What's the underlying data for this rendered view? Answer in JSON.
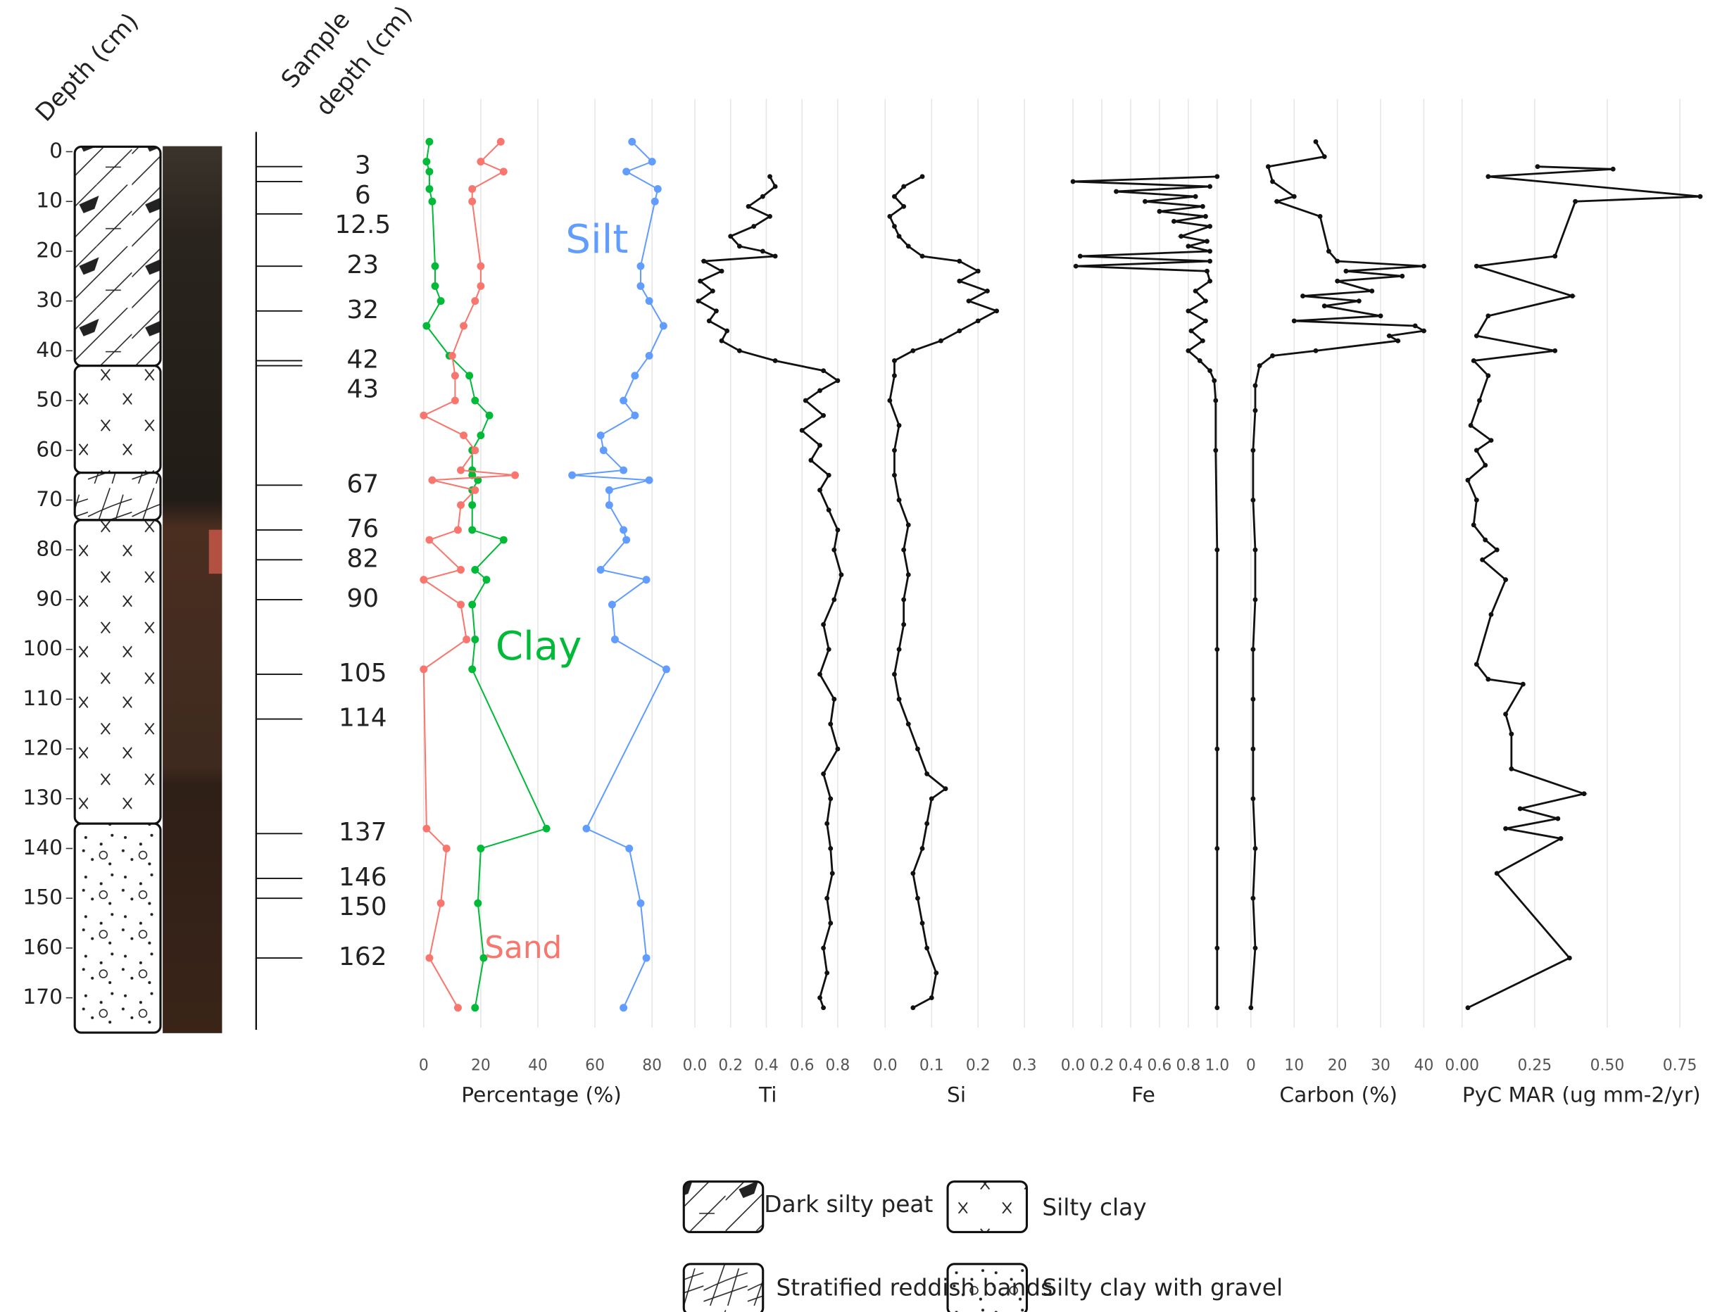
{
  "depth_axis": {
    "label": "Depth (cm)",
    "lim": [
      -10.6,
      176
    ],
    "ticks": [
      0,
      10,
      20,
      30,
      40,
      50,
      60,
      70,
      80,
      90,
      100,
      110,
      120,
      130,
      140,
      150,
      160,
      170
    ]
  },
  "sample_depth": {
    "label_lines": [
      "Sample",
      "depth (cm)"
    ],
    "depths": [
      3,
      6,
      12.5,
      23,
      32,
      42,
      43,
      67,
      76,
      82,
      90,
      105,
      114,
      137,
      146,
      150,
      162
    ]
  },
  "lithology": {
    "types": [
      {
        "label": "Dark silty peat"
      },
      {
        "label": "Silty clay"
      },
      {
        "label": "Stratified reddish bands"
      },
      {
        "label": "Silty clay with gravel"
      }
    ],
    "units": [
      {
        "top": -1,
        "bottom": 43,
        "type": 0
      },
      {
        "top": 43,
        "bottom": 64.5,
        "type": 1
      },
      {
        "top": 64.5,
        "bottom": 74,
        "type": 2
      },
      {
        "top": 74,
        "bottom": 135,
        "type": 1
      },
      {
        "top": 135,
        "bottom": 177,
        "type": 3
      }
    ]
  },
  "chart_data": [
    {
      "type": "line",
      "xlabel": "Percentage (%)",
      "xlim": [
        -4,
        86.5
      ],
      "xticks": [
        0,
        20,
        40,
        60,
        80
      ],
      "depth": [
        -2,
        2,
        4,
        7.5,
        10,
        23,
        27,
        30,
        35,
        41,
        45,
        50,
        53,
        57,
        60,
        64,
        65,
        66,
        68,
        71,
        76,
        78,
        84,
        86,
        91,
        98,
        104,
        136,
        140,
        151,
        162,
        172
      ],
      "series": [
        {
          "name": "Silt",
          "color": "#619cff",
          "values": [
            73,
            80,
            71,
            82,
            81,
            76,
            76,
            79,
            84,
            79,
            74,
            70,
            74,
            62,
            63,
            70,
            52,
            79,
            65,
            65,
            70,
            71,
            62,
            78,
            66,
            67,
            85,
            57,
            72,
            76,
            78,
            70
          ]
        },
        {
          "name": "Clay",
          "color": "#00ba38",
          "values": [
            2,
            1,
            2,
            2,
            3,
            4,
            4,
            6,
            1,
            9,
            16,
            18,
            23,
            20,
            17,
            17,
            17,
            19,
            17,
            17,
            17,
            28,
            18,
            22,
            17,
            18,
            17,
            43,
            20,
            19,
            21,
            18
          ]
        },
        {
          "name": "Sand",
          "color": "#f8766d",
          "values": [
            27,
            20,
            28,
            17,
            17,
            20,
            20,
            18,
            14,
            10,
            11,
            11,
            0,
            14,
            18,
            13,
            32,
            3,
            18,
            13,
            12,
            2,
            13,
            0,
            13,
            15,
            0,
            1,
            8,
            6,
            2,
            12
          ]
        }
      ]
    },
    {
      "type": "line",
      "xlabel": "Ti",
      "xlim": [
        -0.062,
        0.88
      ],
      "xticks": [
        {
          "value": 0,
          "label": "0.0"
        },
        0.2,
        0.4,
        0.6,
        0.8
      ],
      "color": "#111111",
      "depth": [
        5,
        7,
        9,
        11,
        13,
        15,
        17,
        19,
        20,
        21,
        22,
        24,
        26,
        28,
        30,
        32,
        34,
        36,
        38,
        40,
        42,
        44,
        46,
        48,
        50,
        53,
        56,
        59,
        62,
        65,
        68,
        72,
        76,
        80,
        85,
        90,
        95,
        100,
        105,
        110,
        115,
        120,
        125,
        130,
        135,
        140,
        145,
        150,
        155,
        160,
        165,
        170,
        172
      ],
      "values": [
        0.42,
        0.45,
        0.38,
        0.3,
        0.42,
        0.33,
        0.2,
        0.25,
        0.38,
        0.45,
        0.05,
        0.15,
        0.03,
        0.1,
        0.02,
        0.12,
        0.08,
        0.18,
        0.15,
        0.25,
        0.45,
        0.72,
        0.8,
        0.7,
        0.62,
        0.72,
        0.6,
        0.7,
        0.65,
        0.75,
        0.7,
        0.75,
        0.8,
        0.78,
        0.82,
        0.78,
        0.72,
        0.75,
        0.7,
        0.78,
        0.76,
        0.8,
        0.72,
        0.76,
        0.74,
        0.76,
        0.77,
        0.74,
        0.76,
        0.72,
        0.74,
        0.7,
        0.72
      ]
    },
    {
      "type": "line",
      "xlabel": "Si",
      "xlim": [
        -0.024,
        0.331
      ],
      "xticks": [
        {
          "value": 0,
          "label": "0.0"
        },
        0.1,
        0.2,
        0.3
      ],
      "color": "#111111",
      "depth": [
        5,
        7,
        9,
        11,
        13,
        15,
        17,
        19,
        21,
        22,
        24,
        26,
        28,
        30,
        32,
        34,
        36,
        38,
        40,
        42,
        45,
        50,
        55,
        60,
        65,
        70,
        75,
        80,
        85,
        90,
        95,
        100,
        105,
        110,
        115,
        120,
        125,
        128,
        130,
        135,
        140,
        145,
        150,
        155,
        160,
        165,
        170,
        172
      ],
      "values": [
        0.08,
        0.04,
        0.02,
        0.04,
        0.01,
        0.02,
        0.03,
        0.05,
        0.08,
        0.16,
        0.2,
        0.16,
        0.22,
        0.18,
        0.24,
        0.2,
        0.16,
        0.12,
        0.06,
        0.02,
        0.02,
        0.01,
        0.03,
        0.02,
        0.02,
        0.03,
        0.05,
        0.04,
        0.05,
        0.04,
        0.04,
        0.03,
        0.02,
        0.03,
        0.05,
        0.07,
        0.09,
        0.13,
        0.1,
        0.09,
        0.08,
        0.06,
        0.07,
        0.08,
        0.09,
        0.11,
        0.1,
        0.06
      ]
    },
    {
      "type": "line",
      "xlabel": "Fe",
      "xlim": [
        -0.084,
        1.06
      ],
      "xticks": [
        {
          "value": 0,
          "label": "0.0"
        },
        0.2,
        0.4,
        0.6,
        0.8,
        {
          "value": 1,
          "label": "1.0"
        }
      ],
      "color": "#111111",
      "depth": [
        5,
        6,
        7,
        8,
        9,
        10,
        11,
        12,
        13,
        14,
        15,
        17,
        18,
        19,
        20,
        21,
        22,
        23,
        24,
        26,
        28,
        30,
        32,
        34,
        36,
        38,
        40,
        42,
        44,
        46,
        50,
        60,
        80,
        100,
        120,
        140,
        160,
        172
      ],
      "values": [
        1,
        0,
        0.95,
        0.3,
        0.85,
        0.5,
        0.9,
        0.6,
        0.92,
        0.7,
        0.95,
        0.75,
        0.93,
        0.8,
        0.95,
        0.05,
        0.95,
        0.02,
        0.93,
        0.95,
        0.85,
        0.92,
        0.8,
        0.92,
        0.82,
        0.9,
        0.8,
        0.88,
        0.95,
        0.98,
        0.99,
        0.99,
        1,
        1,
        1,
        1,
        1,
        1
      ]
    },
    {
      "type": "line",
      "xlabel": "Carbon (%)",
      "xlim": [
        -2,
        42.5
      ],
      "xticks": [
        0,
        10,
        20,
        30,
        40
      ],
      "color": "#111111",
      "depth": [
        -2,
        1,
        3,
        6,
        9,
        10,
        13,
        20,
        22,
        23,
        24,
        25,
        26,
        28,
        29,
        30,
        31,
        33,
        34,
        35,
        36,
        37,
        38,
        40,
        41,
        43,
        47,
        52,
        60,
        70,
        80,
        90,
        100,
        110,
        120,
        130,
        140,
        150,
        160,
        172
      ],
      "values": [
        15,
        17,
        4,
        5,
        10,
        6,
        16,
        18,
        20,
        40,
        22,
        35,
        20,
        28,
        12,
        25,
        17,
        30,
        10,
        38,
        40,
        32,
        34,
        15,
        5,
        2,
        1,
        1,
        0.5,
        0.5,
        1,
        1,
        0.5,
        0.5,
        0.5,
        0.5,
        1,
        0.5,
        1,
        0
      ]
    },
    {
      "type": "line",
      "xlabel": "PyC MAR (ug mm-2/yr)",
      "xlim": [
        -0.03,
        0.852
      ],
      "xticks": [
        {
          "value": 0,
          "label": "0.00"
        },
        0.25,
        {
          "value": 0.5,
          "label": "0.50"
        },
        0.75
      ],
      "color": "#111111",
      "depth": [
        3,
        3.5,
        5,
        9,
        10,
        21,
        23,
        29,
        33,
        37,
        40,
        42,
        45,
        50,
        55,
        58,
        60,
        63,
        66,
        70,
        75,
        78,
        80,
        82,
        86,
        93,
        103,
        106,
        107,
        113,
        117,
        124,
        129,
        132,
        134,
        136,
        138,
        145,
        162,
        172
      ],
      "values": [
        0.26,
        0.52,
        0.09,
        0.82,
        0.39,
        0.32,
        0.05,
        0.38,
        0.09,
        0.05,
        0.32,
        0.04,
        0.09,
        0.06,
        0.03,
        0.1,
        0.05,
        0.08,
        0.02,
        0.05,
        0.04,
        0.08,
        0.12,
        0.07,
        0.15,
        0.1,
        0.05,
        0.09,
        0.21,
        0.15,
        0.17,
        0.17,
        0.42,
        0.2,
        0.33,
        0.15,
        0.34,
        0.12,
        0.37,
        0.02
      ]
    }
  ]
}
